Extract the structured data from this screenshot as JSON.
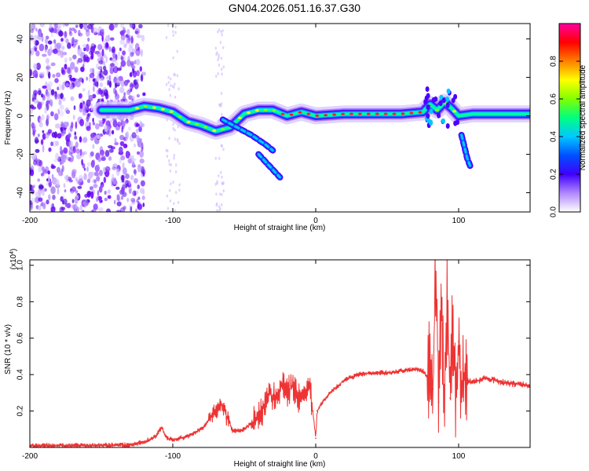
{
  "title": "GN04.2026.051.16.37.G30",
  "chart_data": [
    {
      "type": "heatmap",
      "xlabel": "Height of straight line (km)",
      "ylabel": "Frequency (Hz)",
      "xlim": [
        -200,
        150
      ],
      "ylim": [
        -50,
        48
      ],
      "xticks": [
        -200,
        -100,
        0,
        100
      ],
      "yticks": [
        40,
        20,
        0,
        -20,
        -40
      ],
      "colorbar": {
        "label": "Normalized spectral amplitude",
        "range": [
          0,
          1
        ],
        "ticks": [
          "0.0",
          "0.2",
          "0.4",
          "0.6",
          "0.8"
        ],
        "colors": [
          "#ffffff",
          "#b088ff",
          "#4000ff",
          "#0050ff",
          "#00c8ff",
          "#00ff80",
          "#80ff00",
          "#ffff00",
          "#ff8000",
          "#ff0000",
          "#ff00a0"
        ]
      },
      "ridge": {
        "x": [
          -150,
          -130,
          -120,
          -110,
          -100,
          -90,
          -80,
          -70,
          -60,
          -50,
          -40,
          -30,
          -20,
          -10,
          0,
          20,
          40,
          60,
          75,
          80,
          85,
          90,
          95,
          100,
          110,
          150
        ],
        "y": [
          3,
          3,
          5,
          4,
          2,
          -3,
          -5,
          -8,
          -6,
          1,
          3,
          3,
          0,
          2,
          0,
          1,
          1,
          1,
          2,
          6,
          3,
          7,
          4,
          0,
          1,
          1
        ]
      },
      "branches": [
        {
          "x": [
            -65,
            -55,
            -45,
            -35,
            -30
          ],
          "y": [
            -2,
            -6,
            -10,
            -15,
            -18
          ]
        },
        {
          "x": [
            -40,
            -35,
            -30,
            -25
          ],
          "y": [
            -20,
            -24,
            -28,
            -32
          ]
        },
        {
          "x": [
            102,
            104,
            106,
            108
          ],
          "y": [
            -10,
            -16,
            -22,
            -26
          ]
        }
      ],
      "noise_region": {
        "x": [
          -200,
          -120
        ],
        "y": [
          -50,
          48
        ]
      }
    },
    {
      "type": "line",
      "xlabel": "Height of straight line (km)",
      "ylabel": "SNR (10 * v/v)",
      "y_multiplier": "(x10",
      "y_exponent": "4",
      "y_multiplier_close": ")",
      "xlim": [
        -200,
        150
      ],
      "ylim": [
        0,
        1.03
      ],
      "xticks": [
        -200,
        -100,
        0,
        100
      ],
      "yticks": [
        "0.2",
        "0.4",
        "0.6",
        "0.8",
        "1.0"
      ],
      "ytick_values": [
        0.2,
        0.4,
        0.6,
        0.8,
        1.0
      ],
      "series": [
        {
          "name": "SNR",
          "color": "#ee3333",
          "x": [
            -200,
            -160,
            -130,
            -120,
            -112,
            -108,
            -104,
            -100,
            -90,
            -80,
            -75,
            -70,
            -66,
            -62,
            -58,
            -50,
            -42,
            -36,
            -32,
            -28,
            -24,
            -20,
            -16,
            -12,
            -8,
            -4,
            -2,
            0,
            1,
            5,
            10,
            20,
            30,
            40,
            50,
            60,
            70,
            75,
            78,
            80,
            82,
            84,
            86,
            88,
            90,
            92,
            94,
            96,
            98,
            100,
            102,
            104,
            106,
            110,
            120,
            130,
            140,
            150
          ],
          "y": [
            0.01,
            0.01,
            0.015,
            0.03,
            0.06,
            0.11,
            0.05,
            0.04,
            0.06,
            0.1,
            0.15,
            0.2,
            0.24,
            0.16,
            0.09,
            0.1,
            0.15,
            0.22,
            0.3,
            0.26,
            0.36,
            0.3,
            0.34,
            0.28,
            0.3,
            0.34,
            0.2,
            0.05,
            0.2,
            0.25,
            0.3,
            0.37,
            0.4,
            0.41,
            0.41,
            0.42,
            0.43,
            0.42,
            0.39,
            0.46,
            0.32,
            1.03,
            0.25,
            0.72,
            0.3,
            0.83,
            0.27,
            0.68,
            0.3,
            0.58,
            0.33,
            0.38,
            0.36,
            0.36,
            0.38,
            0.36,
            0.35,
            0.34
          ]
        }
      ]
    }
  ]
}
